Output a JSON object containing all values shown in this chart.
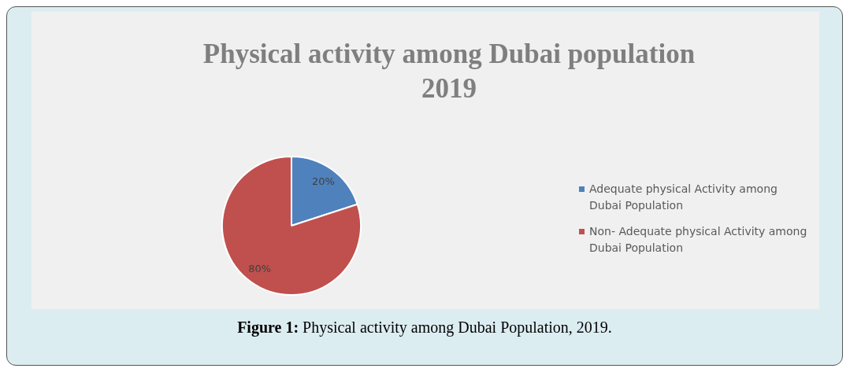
{
  "chart_data": {
    "type": "pie",
    "title": "Physical activity among Dubai population 2019",
    "categories": [
      "Adequate physical Activity among Dubai Population",
      "Non- Adequate physical Activity among Dubai Population"
    ],
    "values": [
      20,
      80
    ],
    "colors": [
      "#4f81bd",
      "#c0504d"
    ],
    "value_labels": [
      "20%",
      "80%"
    ],
    "legend": "right",
    "annotations": [
      "Figure 1: Physical activity among Dubai Population, 2019."
    ]
  }
}
